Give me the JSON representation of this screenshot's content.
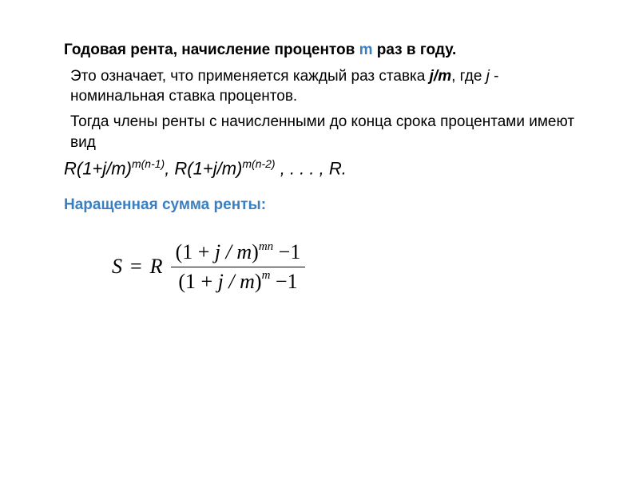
{
  "heading": {
    "prefix": "Годовая рента, начисление процентов ",
    "accent": "m",
    "suffix": " раз в году."
  },
  "paragraph1": {
    "part1": "Это означает, что применяется каждый раз ставка ",
    "rate_var": "j/m",
    "part2": ", где ",
    "j_var": "j",
    "part3": " - номинальная ставка процентов."
  },
  "paragraph2": "Тогда члены ренты с начисленными до конца срока процентами имеют вид",
  "formula_line": {
    "t1_base": "R(1+j/m)",
    "t1_exp": "m(n-1)",
    "sep1": ",  ",
    "t2_base": "R(1+j/m)",
    "t2_exp": "m(n-2)",
    "sep2": "  , . . . ,  ",
    "t3": "R."
  },
  "subheading": "Наращенная сумма ренты:",
  "main_formula": {
    "lhs": "S",
    "eq": "=",
    "rhs_coef": "R",
    "numerator": {
      "open": "(1",
      "plus": "+",
      "jm": "j / m",
      "close": ")",
      "exp": "mn",
      "minus": "−",
      "one": "1"
    },
    "denominator": {
      "open": "(1",
      "plus": "+",
      "jm": "j / m",
      "close": ")",
      "exp": "m",
      "minus": "−",
      "one": "1"
    }
  },
  "colors": {
    "accent": "#3b7fbf",
    "text": "#000000",
    "background": "#ffffff"
  }
}
